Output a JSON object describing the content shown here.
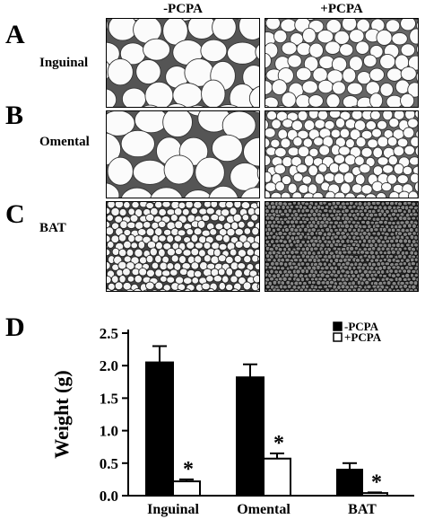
{
  "panels": {
    "A": {
      "letter": "A",
      "label": "Inguinal"
    },
    "B": {
      "letter": "B",
      "label": "Omental"
    },
    "C": {
      "letter": "C",
      "label": "BAT"
    },
    "D": {
      "letter": "D"
    }
  },
  "columns": {
    "left": "-PCPA",
    "right": "+PCPA"
  },
  "chart_data": {
    "type": "bar",
    "categories": [
      "Inguinal",
      "Omental",
      "BAT"
    ],
    "series": [
      {
        "name": "-PCPA",
        "values": [
          2.05,
          1.82,
          0.4
        ],
        "errors": [
          0.25,
          0.2,
          0.1
        ],
        "color": "#000000"
      },
      {
        "name": "+PCPA",
        "values": [
          0.22,
          0.57,
          0.04
        ],
        "errors": [
          0.03,
          0.08,
          0.01
        ],
        "color": "#ffffff"
      }
    ],
    "significance_marker": "*",
    "significant": [
      true,
      true,
      true
    ],
    "ylabel": "Weight (g)",
    "xlabel": "",
    "yticks": [
      "0.0",
      "0.5",
      "1.0",
      "1.5",
      "2.0",
      "2.5"
    ],
    "ylim": [
      0,
      2.5
    ],
    "legend_position": "top-right",
    "grid": false
  }
}
